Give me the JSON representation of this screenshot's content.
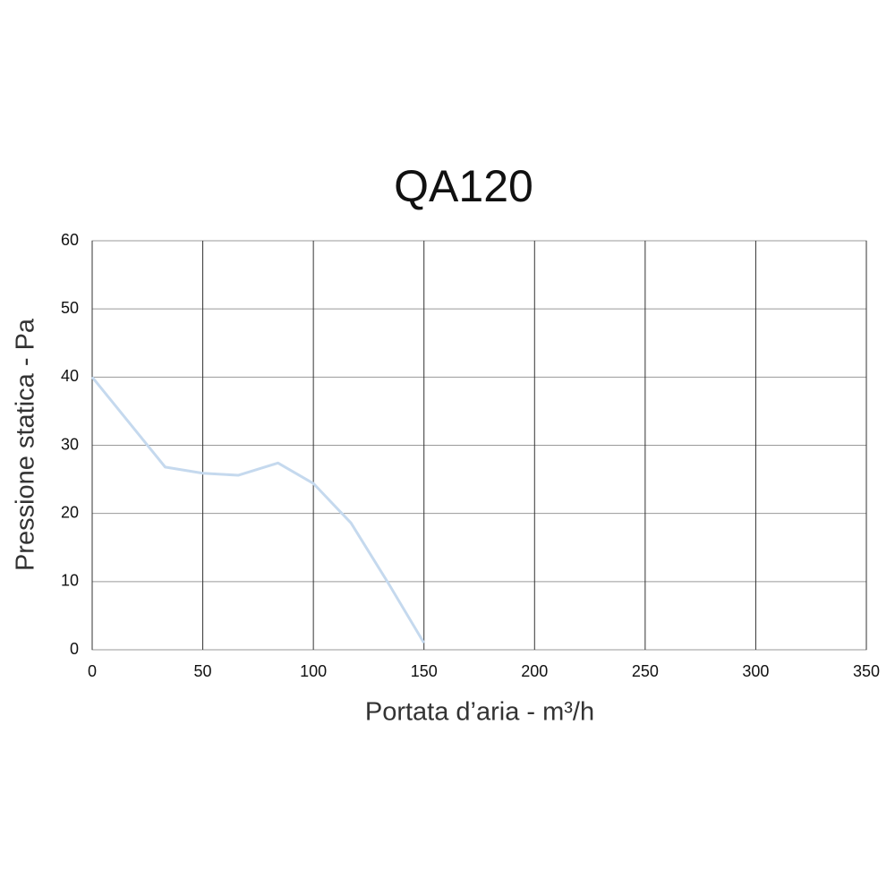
{
  "chart_data": {
    "type": "line",
    "title": "QA120",
    "x_label": "Portata d’aria - m³/h",
    "y_label": "Pressione statica - Pa",
    "x": [
      0,
      33,
      50,
      66,
      84,
      100,
      117,
      134,
      150
    ],
    "values": [
      40,
      26.8,
      25.9,
      25.6,
      27.4,
      24.4,
      18.6,
      9.7,
      1
    ],
    "color": "#c5d9ee",
    "xlim": [
      0,
      350
    ],
    "xticks": [
      0,
      50,
      100,
      150,
      200,
      250,
      300,
      350
    ],
    "ylim": [
      0,
      60
    ],
    "yticks": [
      0,
      10,
      20,
      30,
      40,
      50,
      60
    ],
    "grid": true
  }
}
